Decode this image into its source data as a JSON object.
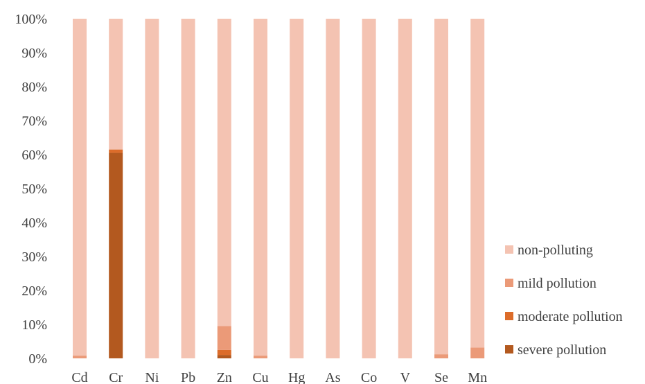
{
  "chart_data": {
    "type": "bar",
    "stacked": true,
    "percent": true,
    "categories": [
      "Cd",
      "Cr",
      "Ni",
      "Pb",
      "Zn",
      "Cu",
      "Hg",
      "As",
      "Co",
      "V",
      "Se",
      "Mn"
    ],
    "series": [
      {
        "name": "severe pollution",
        "color": "#b3591f",
        "values": [
          0,
          60.5,
          0,
          0,
          1.0,
          0,
          0,
          0,
          0,
          0,
          0,
          0
        ]
      },
      {
        "name": "moderate pollution",
        "color": "#dc6c2a",
        "values": [
          0,
          1.0,
          0,
          0,
          1.5,
          0,
          0,
          0,
          0,
          0,
          0,
          0
        ]
      },
      {
        "name": "mild pollution",
        "color": "#eb9a78",
        "values": [
          0.8,
          0,
          0,
          0,
          7.0,
          0.8,
          0,
          0,
          0,
          0,
          1.2,
          3.2
        ]
      },
      {
        "name": "non-polluting",
        "color": "#f4c3b2",
        "values": [
          99.2,
          38.5,
          100,
          100,
          90.5,
          99.2,
          100,
          100,
          100,
          100,
          98.8,
          96.8
        ]
      }
    ],
    "y_ticks": [
      "0%",
      "10%",
      "20%",
      "30%",
      "40%",
      "50%",
      "60%",
      "70%",
      "80%",
      "90%",
      "100%"
    ],
    "ylim": [
      0,
      100
    ],
    "legend_order": [
      "non-polluting",
      "mild pollution",
      "moderate pollution",
      "severe pollution"
    ],
    "legend_position": "right",
    "grid": false,
    "title": "",
    "xlabel": "",
    "ylabel": ""
  }
}
